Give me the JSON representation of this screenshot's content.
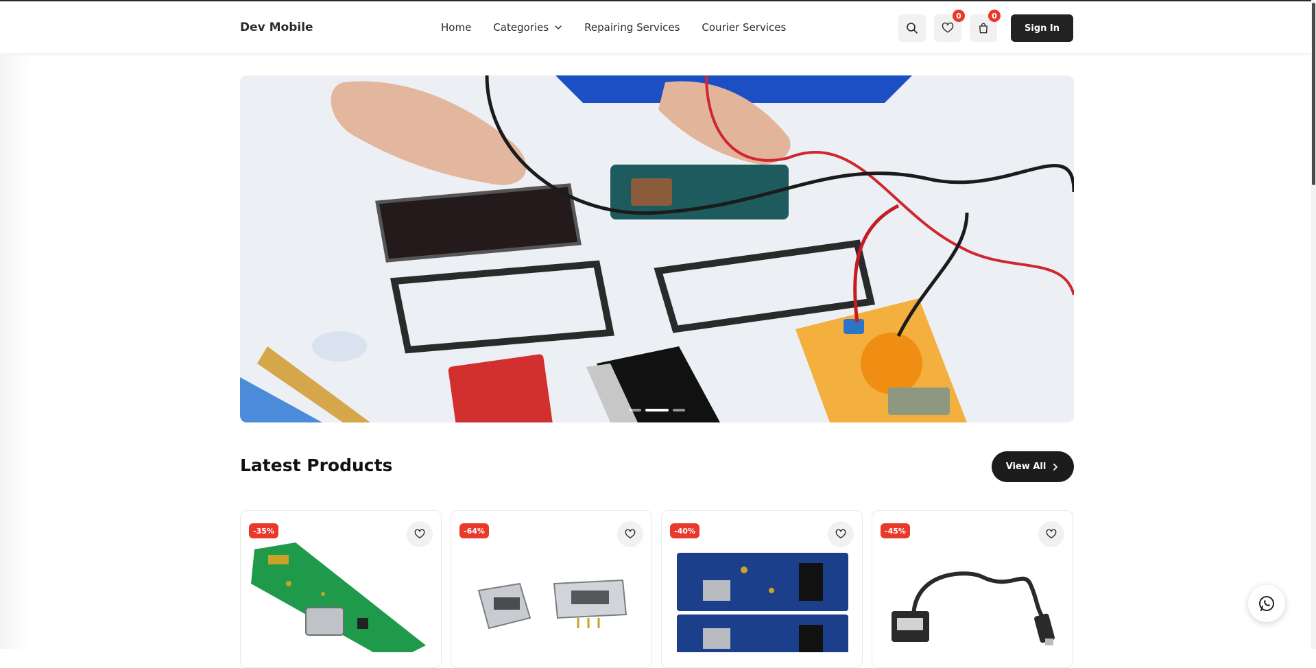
{
  "header": {
    "logo": "Dev Mobile",
    "nav": [
      {
        "label": "Home"
      },
      {
        "label": "Categories",
        "has_dropdown": true
      },
      {
        "label": "Repairing Services"
      },
      {
        "label": "Courier Services"
      }
    ],
    "wishlist_count": "0",
    "cart_count": "0",
    "signin_label": "Sign In"
  },
  "hero": {
    "slide_count": 3,
    "active_slide": 2
  },
  "latest": {
    "title": "Latest Products",
    "view_all_label": "View All"
  },
  "products": [
    {
      "discount": "-35%",
      "icon": "charging-board-image"
    },
    {
      "discount": "-64%",
      "icon": "usb-connector-image"
    },
    {
      "discount": "-40%",
      "icon": "circuit-board-image"
    },
    {
      "discount": "-45%",
      "icon": "otg-cable-image"
    }
  ],
  "colors": {
    "accent_dark": "#222222",
    "badge_red": "#e8392b",
    "whatsapp_green": "#25d366"
  }
}
